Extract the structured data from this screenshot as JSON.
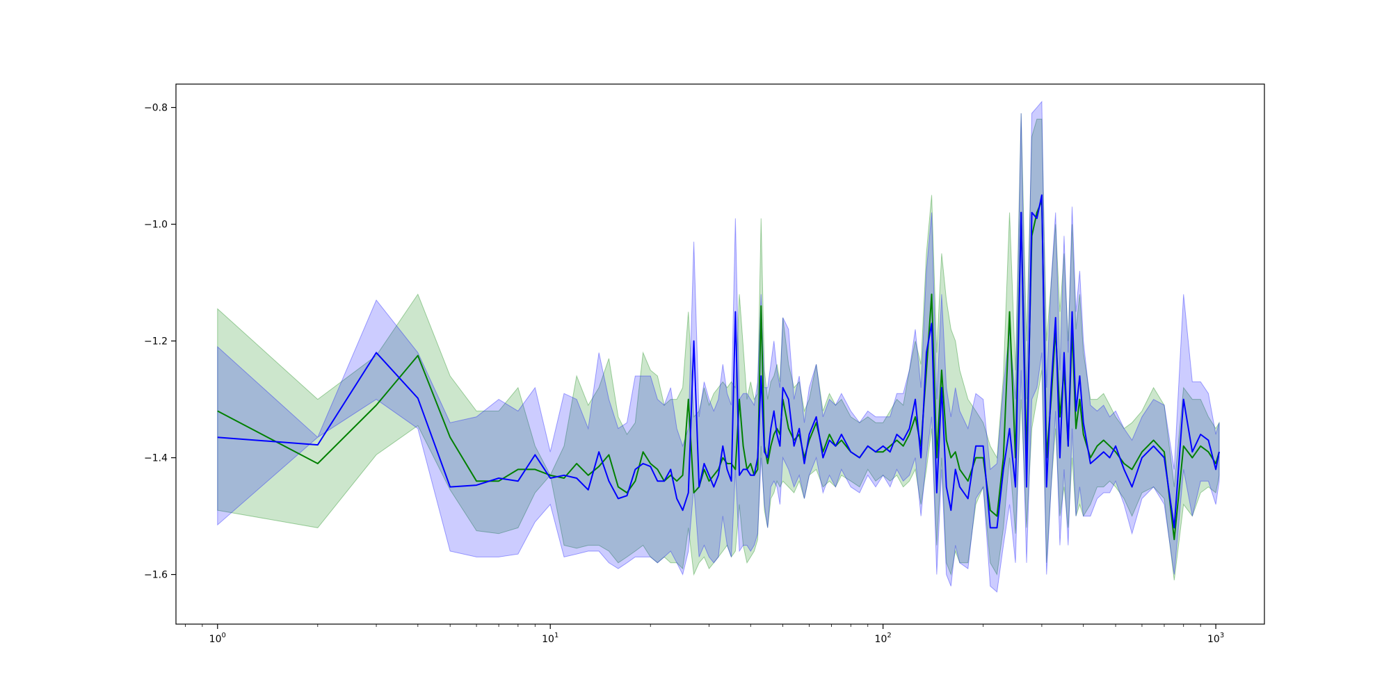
{
  "chart_data": {
    "type": "line",
    "title": "",
    "xlabel": "",
    "ylabel": "",
    "xscale": "log",
    "xlim": [
      0.75,
      1400
    ],
    "ylim": [
      -1.685,
      -0.76
    ],
    "grid": false,
    "legend": "none",
    "x_tick_labels": [
      {
        "value": 1,
        "base": "10",
        "exp": "0"
      },
      {
        "value": 10,
        "base": "10",
        "exp": "1"
      },
      {
        "value": 100,
        "base": "10",
        "exp": "2"
      },
      {
        "value": 1000,
        "base": "10",
        "exp": "3"
      }
    ],
    "y_tick_labels": [
      {
        "value": -1.6,
        "label": "−1.6"
      },
      {
        "value": -1.4,
        "label": "−1.4"
      },
      {
        "value": -1.2,
        "label": "−1.2"
      },
      {
        "value": -1.0,
        "label": "−1.0"
      },
      {
        "value": -0.8,
        "label": "−0.8"
      }
    ],
    "series": [
      {
        "color": "#008000",
        "band_color": "#008000",
        "band_opacity": 0.2,
        "x": [
          1,
          2,
          3,
          4,
          5,
          6,
          7,
          8,
          9,
          10,
          11,
          12,
          13,
          14,
          15,
          16,
          17,
          18,
          19,
          20,
          21,
          22,
          23,
          24,
          25,
          26,
          27,
          28,
          29,
          30,
          31,
          32,
          33,
          34,
          35,
          36,
          37,
          38,
          39,
          40,
          41,
          42,
          43,
          44,
          45,
          46,
          47,
          48,
          49,
          50,
          52,
          54,
          56,
          58,
          60,
          63,
          66,
          69,
          72,
          75,
          80,
          85,
          90,
          95,
          100,
          105,
          110,
          115,
          120,
          125,
          130,
          135,
          140,
          145,
          150,
          155,
          160,
          165,
          170,
          180,
          190,
          200,
          210,
          220,
          230,
          240,
          250,
          260,
          270,
          280,
          290,
          300,
          310,
          320,
          330,
          340,
          350,
          360,
          370,
          380,
          390,
          400,
          420,
          440,
          460,
          480,
          500,
          530,
          560,
          600,
          650,
          700,
          750,
          800,
          850,
          900,
          950,
          1000,
          1024
        ],
        "y": [
          -1.32,
          -1.41,
          -1.31,
          -1.225,
          -1.365,
          -1.44,
          -1.44,
          -1.42,
          -1.42,
          -1.43,
          -1.435,
          -1.41,
          -1.43,
          -1.415,
          -1.395,
          -1.45,
          -1.46,
          -1.44,
          -1.39,
          -1.41,
          -1.42,
          -1.44,
          -1.43,
          -1.44,
          -1.43,
          -1.3,
          -1.46,
          -1.45,
          -1.42,
          -1.44,
          -1.43,
          -1.42,
          -1.4,
          -1.41,
          -1.41,
          -1.42,
          -1.3,
          -1.38,
          -1.42,
          -1.41,
          -1.43,
          -1.42,
          -1.14,
          -1.38,
          -1.41,
          -1.38,
          -1.36,
          -1.35,
          -1.36,
          -1.3,
          -1.35,
          -1.37,
          -1.36,
          -1.4,
          -1.37,
          -1.34,
          -1.39,
          -1.36,
          -1.38,
          -1.37,
          -1.39,
          -1.4,
          -1.38,
          -1.39,
          -1.39,
          -1.38,
          -1.37,
          -1.38,
          -1.36,
          -1.33,
          -1.38,
          -1.25,
          -1.12,
          -1.4,
          -1.25,
          -1.37,
          -1.4,
          -1.39,
          -1.42,
          -1.44,
          -1.4,
          -1.4,
          -1.49,
          -1.5,
          -1.4,
          -1.15,
          -1.4,
          -0.98,
          -1.4,
          -1.02,
          -0.98,
          -0.96,
          -1.4,
          -1.3,
          -1.18,
          -1.33,
          -1.25,
          -1.38,
          -1.18,
          -1.35,
          -1.3,
          -1.36,
          -1.4,
          -1.38,
          -1.37,
          -1.38,
          -1.39,
          -1.41,
          -1.42,
          -1.39,
          -1.37,
          -1.39,
          -1.54,
          -1.38,
          -1.4,
          -1.38,
          -1.39,
          -1.41,
          -1.39
        ],
        "lower": [
          -1.49,
          -1.52,
          -1.395,
          -1.345,
          -1.455,
          -1.525,
          -1.53,
          -1.52,
          -1.46,
          -1.43,
          -1.55,
          -1.555,
          -1.55,
          -1.55,
          -1.56,
          -1.58,
          -1.57,
          -1.56,
          -1.55,
          -1.57,
          -1.58,
          -1.57,
          -1.58,
          -1.58,
          -1.59,
          -1.52,
          -1.6,
          -1.58,
          -1.57,
          -1.59,
          -1.58,
          -1.57,
          -1.56,
          -1.55,
          -1.57,
          -1.56,
          -1.48,
          -1.55,
          -1.58,
          -1.57,
          -1.56,
          -1.54,
          -1.38,
          -1.49,
          -1.52,
          -1.47,
          -1.46,
          -1.44,
          -1.45,
          -1.44,
          -1.45,
          -1.46,
          -1.44,
          -1.47,
          -1.43,
          -1.42,
          -1.45,
          -1.44,
          -1.45,
          -1.43,
          -1.44,
          -1.45,
          -1.42,
          -1.44,
          -1.43,
          -1.44,
          -1.43,
          -1.45,
          -1.44,
          -1.42,
          -1.48,
          -1.42,
          -1.35,
          -1.55,
          -1.4,
          -1.58,
          -1.6,
          -1.56,
          -1.58,
          -1.58,
          -1.48,
          -1.45,
          -1.58,
          -1.6,
          -1.52,
          -1.4,
          -1.53,
          -1.3,
          -1.52,
          -1.35,
          -1.3,
          -1.25,
          -1.58,
          -1.45,
          -1.35,
          -1.5,
          -1.45,
          -1.52,
          -1.4,
          -1.5,
          -1.48,
          -1.5,
          -1.48,
          -1.45,
          -1.45,
          -1.44,
          -1.45,
          -1.47,
          -1.5,
          -1.46,
          -1.45,
          -1.47,
          -1.61,
          -1.48,
          -1.5,
          -1.46,
          -1.45,
          -1.46,
          -1.43
        ],
        "upper": [
          -1.145,
          -1.3,
          -1.225,
          -1.12,
          -1.26,
          -1.32,
          -1.32,
          -1.28,
          -1.38,
          -1.43,
          -1.38,
          -1.26,
          -1.31,
          -1.28,
          -1.23,
          -1.33,
          -1.36,
          -1.34,
          -1.22,
          -1.25,
          -1.26,
          -1.31,
          -1.3,
          -1.3,
          -1.28,
          -1.15,
          -1.33,
          -1.32,
          -1.28,
          -1.31,
          -1.29,
          -1.28,
          -1.27,
          -1.28,
          -1.27,
          -1.28,
          -1.12,
          -1.21,
          -1.3,
          -1.27,
          -1.3,
          -1.29,
          -0.99,
          -1.25,
          -1.3,
          -1.27,
          -1.26,
          -1.24,
          -1.27,
          -1.16,
          -1.24,
          -1.28,
          -1.27,
          -1.32,
          -1.3,
          -1.24,
          -1.32,
          -1.29,
          -1.31,
          -1.3,
          -1.33,
          -1.34,
          -1.33,
          -1.34,
          -1.34,
          -1.32,
          -1.3,
          -1.31,
          -1.25,
          -1.2,
          -1.24,
          -1.05,
          -0.95,
          -1.22,
          -1.05,
          -1.13,
          -1.18,
          -1.2,
          -1.25,
          -1.3,
          -1.32,
          -1.34,
          -1.38,
          -1.4,
          -1.26,
          -0.98,
          -1.25,
          -0.81,
          -1.2,
          -0.85,
          -0.82,
          -0.82,
          -1.2,
          -1.1,
          -1.0,
          -1.15,
          -1.05,
          -1.2,
          -1.0,
          -1.18,
          -1.12,
          -1.22,
          -1.3,
          -1.3,
          -1.29,
          -1.31,
          -1.33,
          -1.35,
          -1.34,
          -1.32,
          -1.28,
          -1.31,
          -1.45,
          -1.28,
          -1.3,
          -1.3,
          -1.33,
          -1.35,
          -1.34
        ]
      },
      {
        "color": "#0000ff",
        "band_color": "#0000ff",
        "band_opacity": 0.2,
        "x": [
          1,
          2,
          3,
          4,
          5,
          6,
          7,
          8,
          9,
          10,
          11,
          12,
          13,
          14,
          15,
          16,
          17,
          18,
          19,
          20,
          21,
          22,
          23,
          24,
          25,
          26,
          27,
          28,
          29,
          30,
          31,
          32,
          33,
          34,
          35,
          36,
          37,
          38,
          39,
          40,
          41,
          42,
          43,
          44,
          45,
          46,
          47,
          48,
          49,
          50,
          52,
          54,
          56,
          58,
          60,
          63,
          66,
          69,
          72,
          75,
          80,
          85,
          90,
          95,
          100,
          105,
          110,
          115,
          120,
          125,
          130,
          135,
          140,
          145,
          150,
          155,
          160,
          165,
          170,
          180,
          190,
          200,
          210,
          220,
          230,
          240,
          250,
          260,
          270,
          280,
          290,
          300,
          310,
          320,
          330,
          340,
          350,
          360,
          370,
          380,
          390,
          400,
          420,
          440,
          460,
          480,
          500,
          530,
          560,
          600,
          650,
          700,
          750,
          800,
          850,
          900,
          950,
          1000,
          1024
        ],
        "y": [
          -1.365,
          -1.378,
          -1.22,
          -1.298,
          -1.45,
          -1.447,
          -1.435,
          -1.44,
          -1.395,
          -1.435,
          -1.43,
          -1.435,
          -1.455,
          -1.39,
          -1.44,
          -1.47,
          -1.465,
          -1.42,
          -1.41,
          -1.415,
          -1.44,
          -1.44,
          -1.42,
          -1.47,
          -1.49,
          -1.46,
          -1.2,
          -1.45,
          -1.41,
          -1.43,
          -1.45,
          -1.43,
          -1.38,
          -1.42,
          -1.44,
          -1.15,
          -1.43,
          -1.42,
          -1.42,
          -1.43,
          -1.43,
          -1.4,
          -1.26,
          -1.39,
          -1.4,
          -1.35,
          -1.32,
          -1.36,
          -1.38,
          -1.28,
          -1.3,
          -1.38,
          -1.35,
          -1.41,
          -1.36,
          -1.33,
          -1.4,
          -1.37,
          -1.38,
          -1.36,
          -1.39,
          -1.4,
          -1.38,
          -1.39,
          -1.38,
          -1.39,
          -1.36,
          -1.37,
          -1.35,
          -1.3,
          -1.4,
          -1.22,
          -1.17,
          -1.46,
          -1.28,
          -1.45,
          -1.49,
          -1.42,
          -1.45,
          -1.47,
          -1.38,
          -1.38,
          -1.52,
          -1.52,
          -1.42,
          -1.35,
          -1.45,
          -0.98,
          -1.45,
          -0.98,
          -0.99,
          -0.95,
          -1.45,
          -1.28,
          -1.16,
          -1.4,
          -1.22,
          -1.38,
          -1.15,
          -1.32,
          -1.26,
          -1.34,
          -1.41,
          -1.4,
          -1.39,
          -1.4,
          -1.38,
          -1.42,
          -1.45,
          -1.4,
          -1.38,
          -1.4,
          -1.52,
          -1.3,
          -1.39,
          -1.36,
          -1.37,
          -1.42,
          -1.39
        ],
        "lower": [
          -1.515,
          -1.365,
          -1.3,
          -1.35,
          -1.56,
          -1.57,
          -1.57,
          -1.565,
          -1.51,
          -1.48,
          -1.57,
          -1.565,
          -1.56,
          -1.56,
          -1.58,
          -1.59,
          -1.58,
          -1.57,
          -1.57,
          -1.57,
          -1.58,
          -1.57,
          -1.56,
          -1.58,
          -1.6,
          -1.56,
          -1.45,
          -1.57,
          -1.55,
          -1.57,
          -1.58,
          -1.57,
          -1.5,
          -1.55,
          -1.57,
          -1.42,
          -1.56,
          -1.55,
          -1.55,
          -1.56,
          -1.55,
          -1.53,
          -1.4,
          -1.48,
          -1.52,
          -1.45,
          -1.44,
          -1.45,
          -1.48,
          -1.4,
          -1.42,
          -1.45,
          -1.43,
          -1.47,
          -1.43,
          -1.4,
          -1.46,
          -1.43,
          -1.45,
          -1.42,
          -1.45,
          -1.46,
          -1.43,
          -1.45,
          -1.43,
          -1.45,
          -1.42,
          -1.44,
          -1.43,
          -1.4,
          -1.5,
          -1.4,
          -1.33,
          -1.6,
          -1.42,
          -1.6,
          -1.62,
          -1.55,
          -1.58,
          -1.59,
          -1.47,
          -1.45,
          -1.62,
          -1.63,
          -1.55,
          -1.48,
          -1.58,
          -1.25,
          -1.58,
          -1.3,
          -1.28,
          -1.22,
          -1.6,
          -1.45,
          -1.32,
          -1.55,
          -1.42,
          -1.55,
          -1.35,
          -1.5,
          -1.45,
          -1.5,
          -1.5,
          -1.47,
          -1.46,
          -1.46,
          -1.44,
          -1.48,
          -1.53,
          -1.47,
          -1.45,
          -1.48,
          -1.6,
          -1.42,
          -1.5,
          -1.44,
          -1.44,
          -1.48,
          -1.44
        ],
        "upper": [
          -1.21,
          -1.365,
          -1.13,
          -1.22,
          -1.34,
          -1.33,
          -1.3,
          -1.32,
          -1.28,
          -1.39,
          -1.29,
          -1.3,
          -1.35,
          -1.22,
          -1.3,
          -1.35,
          -1.34,
          -1.26,
          -1.26,
          -1.26,
          -1.3,
          -1.31,
          -1.28,
          -1.35,
          -1.38,
          -1.35,
          -1.03,
          -1.33,
          -1.27,
          -1.3,
          -1.32,
          -1.3,
          -1.24,
          -1.29,
          -1.31,
          -0.99,
          -1.3,
          -1.29,
          -1.29,
          -1.3,
          -1.31,
          -1.27,
          -1.12,
          -1.28,
          -1.28,
          -1.24,
          -1.2,
          -1.25,
          -1.28,
          -1.16,
          -1.18,
          -1.3,
          -1.26,
          -1.34,
          -1.28,
          -1.24,
          -1.33,
          -1.3,
          -1.31,
          -1.29,
          -1.32,
          -1.34,
          -1.32,
          -1.33,
          -1.33,
          -1.33,
          -1.29,
          -1.29,
          -1.25,
          -1.18,
          -1.28,
          -1.08,
          -0.98,
          -1.3,
          -1.12,
          -1.28,
          -1.33,
          -1.28,
          -1.32,
          -1.35,
          -1.29,
          -1.3,
          -1.42,
          -1.41,
          -1.28,
          -1.18,
          -1.3,
          -0.81,
          -1.3,
          -0.81,
          -0.8,
          -0.79,
          -1.28,
          -1.1,
          -0.98,
          -1.25,
          -1.02,
          -1.22,
          -0.97,
          -1.15,
          -1.08,
          -1.2,
          -1.31,
          -1.32,
          -1.31,
          -1.33,
          -1.32,
          -1.35,
          -1.37,
          -1.33,
          -1.3,
          -1.31,
          -1.42,
          -1.12,
          -1.27,
          -1.27,
          -1.29,
          -1.36,
          -1.34
        ]
      }
    ]
  }
}
